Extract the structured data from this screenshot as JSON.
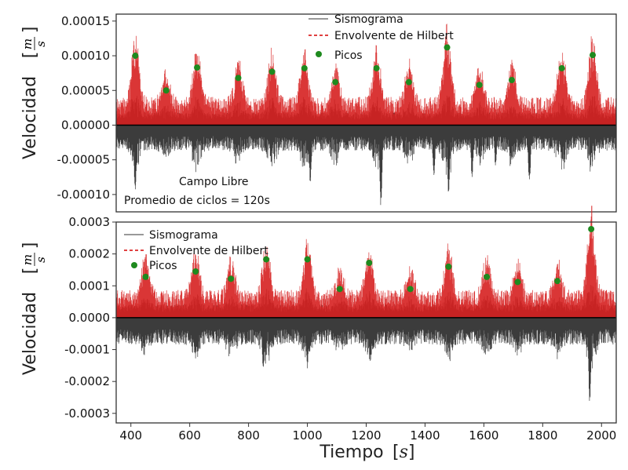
{
  "chart_data": [
    {
      "type": "line",
      "panel": "top",
      "ylabel": "Velocidad",
      "ylabel_unit": "m/s",
      "xlim": [
        350,
        2050
      ],
      "ylim": [
        -0.000125,
        0.00016
      ],
      "yticks": [
        "0.00015",
        "0.00010",
        "0.00005",
        "0.00000",
        "-0.00005",
        "-0.00010"
      ],
      "ytick_values": [
        0.00015,
        0.0001,
        5e-05,
        0,
        -5e-05,
        -0.0001
      ],
      "legend": {
        "placement": "top-center",
        "entries": [
          "Sismograma",
          "Envolvente de Hilbert",
          "Picos"
        ]
      },
      "annotations": [
        "Campo Libre",
        "Promedio de ciclos = 120s"
      ],
      "series": [
        {
          "name": "Sismograma",
          "color": "#1a1a1a",
          "style": "solid",
          "envelope_base": 2.2e-05,
          "neg_peaks_x": [
            415,
            1010,
            1250,
            1430,
            1480,
            1560,
            1640,
            1755
          ],
          "neg_peaks_y": [
            -0.0001,
            -8.5e-05,
            -0.00012,
            -7.5e-05,
            -0.0001,
            -7.5e-05,
            -6e-05,
            -8.5e-05
          ]
        },
        {
          "name": "Envolvente de Hilbert",
          "color": "#d62020",
          "style": "dashed",
          "envelope_base": 2.8e-05
        },
        {
          "name": "Picos",
          "color": "#1e8a1e",
          "style": "marker",
          "x": [
            415,
            520,
            625,
            765,
            880,
            990,
            1095,
            1235,
            1345,
            1475,
            1585,
            1695,
            1865,
            1970
          ],
          "y": [
            0.0001,
            5e-05,
            8.3e-05,
            6.8e-05,
            7.7e-05,
            8.2e-05,
            6.2e-05,
            8.2e-05,
            6.2e-05,
            0.000112,
            5.8e-05,
            6.5e-05,
            8.2e-05,
            0.000101
          ]
        }
      ]
    },
    {
      "type": "line",
      "panel": "bottom",
      "ylabel": "Velocidad",
      "ylabel_unit": "m/s",
      "xlabel": "Tiempo",
      "xlabel_unit": "s",
      "xlim": [
        350,
        2050
      ],
      "ylim": [
        -0.00033,
        0.0003
      ],
      "xticks": [
        "400",
        "600",
        "800",
        "1000",
        "1200",
        "1400",
        "1600",
        "1800",
        "2000"
      ],
      "xtick_values": [
        400,
        600,
        800,
        1000,
        1200,
        1400,
        1600,
        1800,
        2000
      ],
      "yticks": [
        "0.0003",
        "0.0002",
        "0.0001",
        "0.0000",
        "-0.0001",
        "-0.0002",
        "-0.0003"
      ],
      "ytick_values": [
        0.0003,
        0.0002,
        0.0001,
        0,
        -0.0001,
        -0.0002,
        -0.0003
      ],
      "legend": {
        "placement": "top-left",
        "entries": [
          "Sismograma",
          "Envolvente de Hilbert",
          "Picos"
        ]
      },
      "series": [
        {
          "name": "Sismograma",
          "color": "#1a1a1a",
          "style": "solid",
          "envelope_base": 5e-05,
          "neg_peaks_x": [
            620,
            850,
            1000,
            1215,
            1960
          ],
          "neg_peaks_y": [
            -0.00013,
            -0.00016,
            -0.00016,
            -0.00014,
            -0.00028
          ]
        },
        {
          "name": "Envolvente de Hilbert",
          "color": "#d62020",
          "style": "dashed",
          "envelope_base": 6e-05
        },
        {
          "name": "Picos",
          "color": "#1e8a1e",
          "style": "marker",
          "x": [
            450,
            620,
            740,
            860,
            1000,
            1110,
            1210,
            1350,
            1480,
            1610,
            1715,
            1850,
            1965
          ],
          "y": [
            0.000128,
            0.000145,
            0.000122,
            0.000183,
            0.000183,
            9e-05,
            0.000172,
            9e-05,
            0.00016,
            0.000128,
            0.000112,
            0.000115,
            0.000278
          ]
        }
      ]
    }
  ]
}
